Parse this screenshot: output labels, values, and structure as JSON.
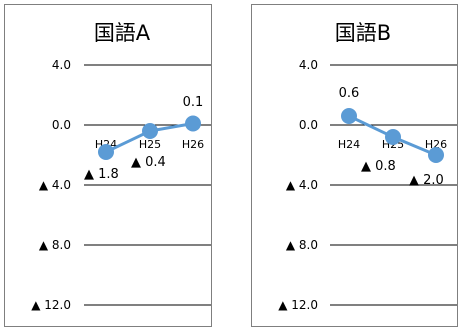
{
  "chart_data": [
    {
      "type": "line",
      "title": "国語A",
      "categories": [
        "H24",
        "H25",
        "H26"
      ],
      "series": [
        {
          "values": [
            -1.8,
            -0.4,
            0.1
          ]
        }
      ],
      "data_labels": [
        "▲ 1.8",
        "▲ 0.4",
        "0.1"
      ],
      "y_tick_labels": [
        "4.0",
        "0.0",
        "▲ 4.0",
        "▲ 8.0",
        "▲ 12.0"
      ],
      "y_ticks": [
        4,
        0,
        -4,
        -8,
        -12
      ],
      "ylim": [
        -13,
        7
      ],
      "grid": true,
      "legend": "none",
      "colors": {
        "line": "#5b9bd5",
        "marker": "#5b9bd5",
        "grid": "#000000"
      }
    },
    {
      "type": "line",
      "title": "国語B",
      "categories": [
        "H24",
        "H25",
        "H26"
      ],
      "series": [
        {
          "values": [
            0.6,
            -0.8,
            -2.0
          ]
        }
      ],
      "data_labels": [
        "0.6",
        "▲ 0.8",
        "▲ 2.0"
      ],
      "y_tick_labels": [
        "4.0",
        "0.0",
        "▲ 4.0",
        "▲ 8.0",
        "▲ 12.0"
      ],
      "y_ticks": [
        4,
        0,
        -4,
        -8,
        -12
      ],
      "ylim": [
        -13,
        7
      ],
      "grid": true,
      "legend": "none",
      "colors": {
        "line": "#5b9bd5",
        "marker": "#5b9bd5",
        "grid": "#000000"
      }
    }
  ]
}
